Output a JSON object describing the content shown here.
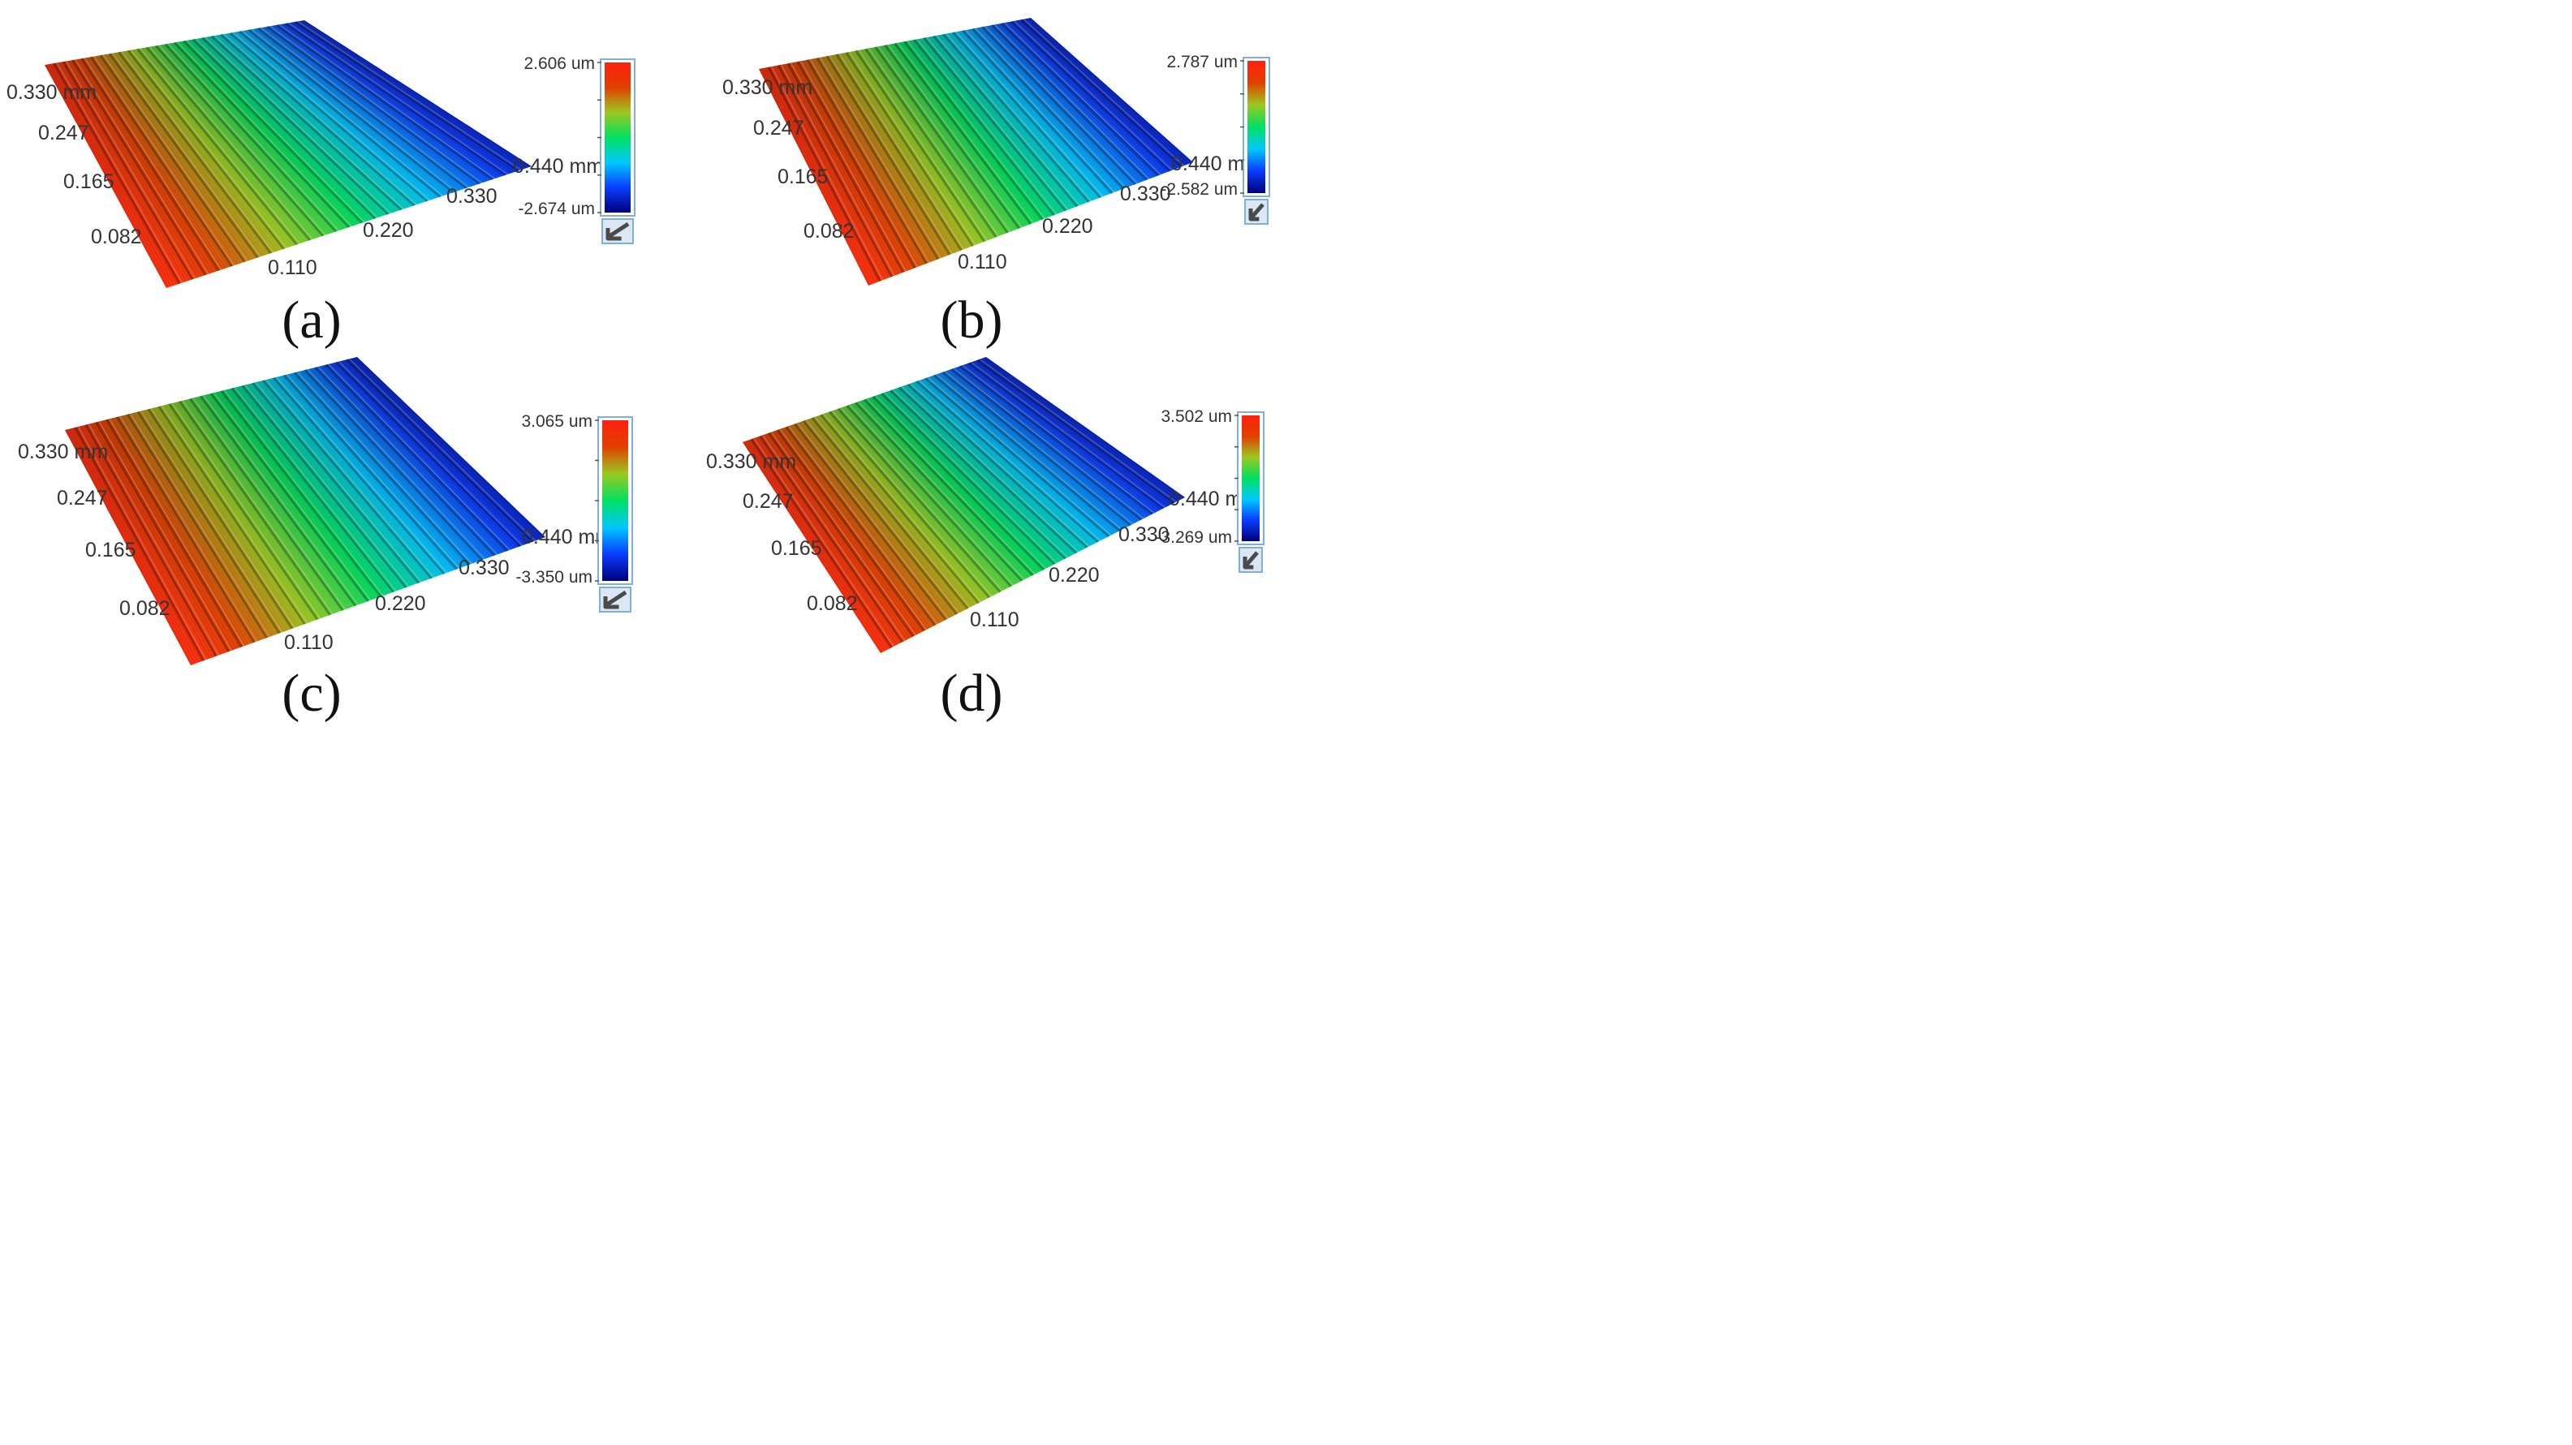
{
  "chart_data": [
    {
      "type": "heatmap",
      "subtype": "3d-surface-topography",
      "panel_label": "(a)",
      "x_ticks": [
        "0.110",
        "0.220",
        "0.330",
        "0.440 mm"
      ],
      "y_ticks": [
        "0.082",
        "0.165",
        "0.247",
        "0.330 mm"
      ],
      "colorbar": {
        "max_label": "2.606 um",
        "min_label": "-2.674 um",
        "max": 2.606,
        "min": -2.674,
        "unit": "um"
      },
      "colors": [
        "#00007a",
        "#0a3cff",
        "#00c8ff",
        "#00e060",
        "#9cc820",
        "#e04000",
        "#ff2010"
      ]
    },
    {
      "type": "heatmap",
      "subtype": "3d-surface-topography",
      "panel_label": "(b)",
      "x_ticks": [
        "0.110",
        "0.220",
        "0.330",
        "0.440 mm"
      ],
      "y_ticks": [
        "0.082",
        "0.165",
        "0.247",
        "0.330 mm"
      ],
      "colorbar": {
        "max_label": "2.787 um",
        "min_label": "-2.582 um",
        "max": 2.787,
        "min": -2.582,
        "unit": "um"
      },
      "colors": [
        "#00007a",
        "#0a3cff",
        "#00c8ff",
        "#00e060",
        "#9cc820",
        "#e04000",
        "#ff2010"
      ]
    },
    {
      "type": "heatmap",
      "subtype": "3d-surface-topography",
      "panel_label": "(c)",
      "x_ticks": [
        "0.110",
        "0.220",
        "0.330",
        "0.440 mm"
      ],
      "y_ticks": [
        "0.082",
        "0.165",
        "0.247",
        "0.330 mm"
      ],
      "colorbar": {
        "max_label": "3.065 um",
        "min_label": "-3.350 um",
        "max": 3.065,
        "min": -3.35,
        "unit": "um"
      },
      "colors": [
        "#00007a",
        "#0a3cff",
        "#00c8ff",
        "#00e060",
        "#9cc820",
        "#e04000",
        "#ff2010"
      ]
    },
    {
      "type": "heatmap",
      "subtype": "3d-surface-topography",
      "panel_label": "(d)",
      "x_ticks": [
        "0.110",
        "0.220",
        "0.330",
        "0.440 mm"
      ],
      "y_ticks": [
        "0.082",
        "0.165",
        "0.247",
        "0.330 mm"
      ],
      "colorbar": {
        "max_label": "3.502 um",
        "min_label": "-3.269 um",
        "max": 3.502,
        "min": -3.269,
        "unit": "um"
      },
      "colors": [
        "#00007a",
        "#0a3cff",
        "#00c8ff",
        "#00e060",
        "#9cc820",
        "#e04000",
        "#ff2010"
      ]
    }
  ]
}
